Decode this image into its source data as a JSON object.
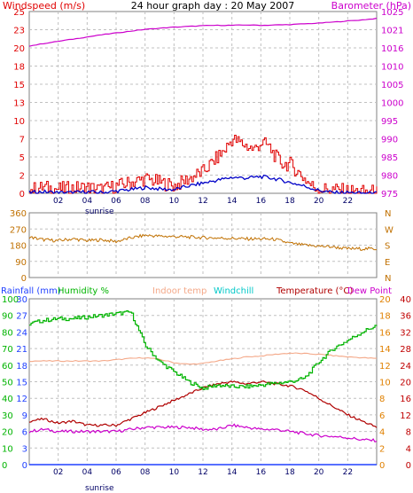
{
  "colors": {
    "wind_avg": "#0000c8",
    "wind_gust": "#e00000",
    "barometer": "#cc00cc",
    "wind_dir": "#c07000",
    "rain": "#2040ff",
    "humidity": "#00b400",
    "indoor_temp": "#f4a888",
    "windchill": "#00c8c8",
    "temperature": "#b00000",
    "dew_point": "#cc00cc",
    "right_axis_orange": "#e08000",
    "right_axis_red": "#c00000",
    "grid": "#c0c0c0",
    "frame": "#808080",
    "axis_text": "#000066"
  },
  "chart_data": [
    {
      "type": "line",
      "id": "wind-baro",
      "title": "24 hour graph day : 20 May 2007",
      "left_label": "Windspeed (m/s)",
      "right_label": "Barometer (hPa)",
      "left_ticks": [
        "0",
        "2",
        "5",
        "7",
        "10",
        "13",
        "15",
        "18",
        "20",
        "23",
        "25"
      ],
      "right_ticks": [
        "975",
        "980",
        "985",
        "990",
        "995",
        "1000",
        "1005",
        "1010",
        "1016",
        "1021",
        "1025"
      ],
      "x_ticks": [
        "02",
        "04",
        "06",
        "08",
        "10",
        "12",
        "14",
        "16",
        "18",
        "20",
        "22"
      ],
      "x_note": "sunrise",
      "ylim_left": [
        0,
        25
      ],
      "ylim_right": [
        975,
        1025
      ],
      "xlim": [
        0,
        24
      ],
      "series": [
        {
          "name": "Barometer",
          "axis": "right",
          "x": [
            0,
            1,
            2,
            3,
            4,
            5,
            6,
            7,
            8,
            9,
            10,
            11,
            12,
            13,
            14,
            15,
            16,
            17,
            18,
            19,
            20,
            21,
            22,
            23,
            24
          ],
          "values": [
            1015.5,
            1016.2,
            1016.8,
            1017.4,
            1018,
            1018.6,
            1019.1,
            1019.6,
            1020.1,
            1020.4,
            1020.7,
            1020.9,
            1021.1,
            1021.2,
            1021.2,
            1021.3,
            1021.2,
            1021.3,
            1021.4,
            1021.6,
            1021.8,
            1022.1,
            1022.4,
            1022.7,
            1023.1
          ]
        },
        {
          "name": "Wind gust",
          "axis": "left",
          "x": [
            0,
            1,
            2,
            3,
            4,
            5,
            6,
            7,
            8,
            9,
            10,
            11,
            12,
            12.5,
            13,
            13.5,
            14,
            14.5,
            15,
            15.5,
            16,
            16.5,
            17,
            17.5,
            18,
            18.5,
            19,
            19.5,
            20,
            21,
            22,
            23,
            24
          ],
          "values": [
            0.5,
            0.8,
            0.6,
            0.7,
            0.8,
            0.5,
            1,
            1.5,
            2,
            1.5,
            1,
            2,
            3,
            4,
            5,
            6,
            7.5,
            7,
            6.5,
            6,
            7,
            6.5,
            5,
            4,
            4,
            3,
            2,
            1,
            0.6,
            0.5,
            0.3,
            0.2,
            0.2
          ]
        },
        {
          "name": "Wind average",
          "axis": "left",
          "x": [
            0,
            1,
            2,
            3,
            4,
            5,
            6,
            7,
            8,
            9,
            10,
            11,
            12,
            13,
            14,
            15,
            16,
            17,
            18,
            19,
            20,
            21,
            22,
            23,
            24
          ],
          "values": [
            0.1,
            0.2,
            0.1,
            0.1,
            0.2,
            0.1,
            0.3,
            0.5,
            0.8,
            0.6,
            0.5,
            1,
            1.4,
            1.8,
            2.2,
            2.1,
            2.3,
            2,
            1.5,
            1,
            0.4,
            0.1,
            0.1,
            0,
            0
          ]
        }
      ]
    },
    {
      "type": "line",
      "id": "wind-direction",
      "left_ticks": [
        "0",
        "90",
        "180",
        "270",
        "360"
      ],
      "right_ticks": [
        "N",
        "E",
        "S",
        "W",
        "N"
      ],
      "ylim": [
        0,
        360
      ],
      "xlim": [
        0,
        24
      ],
      "series": [
        {
          "name": "Wind direction",
          "x": [
            0,
            1,
            2,
            3,
            4,
            5,
            6,
            7,
            8,
            9,
            10,
            11,
            12,
            13,
            14,
            15,
            16,
            17,
            18,
            19,
            20,
            21,
            22,
            23,
            24
          ],
          "values": [
            225,
            210,
            205,
            215,
            205,
            210,
            200,
            220,
            235,
            230,
            228,
            225,
            222,
            220,
            218,
            215,
            215,
            212,
            190,
            180,
            175,
            170,
            160,
            160,
            160
          ]
        }
      ]
    },
    {
      "type": "line",
      "id": "temp-hum-rain",
      "labels": {
        "rain": "Rainfall (mm)",
        "humidity": "Humidity %",
        "indoor": "Indoor temp",
        "windchill": "Windchill",
        "temperature": "Temperature (°C)",
        "dewpoint": "Dew Point"
      },
      "x_ticks": [
        "02",
        "04",
        "06",
        "08",
        "10",
        "12",
        "14",
        "16",
        "18",
        "20",
        "22"
      ],
      "x_note": "sunrise",
      "humidity_ticks": [
        "0",
        "10",
        "20",
        "30",
        "40",
        "50",
        "60",
        "70",
        "80",
        "90",
        "100"
      ],
      "rain_ticks": [
        "0",
        "3",
        "6",
        "9",
        "12",
        "15",
        "18",
        "21",
        "24",
        "27",
        "30"
      ],
      "temp_ticks_outer": [
        "0",
        "4",
        "8",
        "12",
        "16",
        "20",
        "24",
        "28",
        "32",
        "36",
        "40"
      ],
      "temp_ticks_inner": [
        "0",
        "2",
        "4",
        "6",
        "8",
        "10",
        "12",
        "14",
        "16",
        "18",
        "20"
      ],
      "xlim": [
        0,
        24
      ],
      "ylim_humidity": [
        0,
        100
      ],
      "ylim_temperature": [
        0,
        40
      ],
      "series": [
        {
          "name": "Humidity",
          "axis": "humidity",
          "x": [
            0,
            1,
            2,
            3,
            4,
            5,
            6,
            7,
            8,
            9,
            10,
            11,
            12,
            13,
            14,
            15,
            16,
            17,
            18,
            19,
            20,
            21,
            22,
            23,
            24
          ],
          "values": [
            85,
            87,
            88,
            88,
            89,
            90,
            91,
            92,
            72,
            62,
            56,
            50,
            46,
            48,
            47,
            47,
            48,
            49,
            50,
            52,
            62,
            70,
            75,
            80,
            84
          ]
        },
        {
          "name": "Indoor temp",
          "axis": "temperature",
          "x": [
            0,
            1,
            2,
            3,
            4,
            5,
            6,
            7,
            8,
            9,
            10,
            11,
            12,
            13,
            14,
            15,
            16,
            17,
            18,
            19,
            20,
            21,
            22,
            23,
            24
          ],
          "values": [
            25,
            25,
            25,
            25,
            25,
            25,
            25.3,
            25.6,
            25.8,
            25.4,
            24.6,
            24.2,
            24.4,
            25,
            25.5,
            26,
            26.2,
            26.6,
            26.9,
            26.8,
            26.6,
            26.3,
            26,
            25.8,
            25.6
          ]
        },
        {
          "name": "Temperature",
          "axis": "temperature",
          "x": [
            0,
            1,
            2,
            3,
            4,
            5,
            6,
            7,
            8,
            9,
            10,
            11,
            12,
            13,
            14,
            15,
            16,
            17,
            18,
            19,
            20,
            21,
            22,
            23,
            24
          ],
          "values": [
            10.5,
            11,
            10,
            10.5,
            9.5,
            9.5,
            9.5,
            11,
            12.5,
            14,
            15.5,
            17,
            18.5,
            19.5,
            20,
            19.5,
            20,
            19.5,
            19,
            18,
            16,
            14,
            12,
            10.5,
            9
          ]
        },
        {
          "name": "Dew Point",
          "axis": "temperature",
          "x": [
            0,
            1,
            2,
            3,
            4,
            5,
            6,
            7,
            8,
            9,
            10,
            11,
            12,
            13,
            14,
            15,
            16,
            17,
            18,
            19,
            20,
            21,
            22,
            23,
            24
          ],
          "values": [
            8,
            8.5,
            8,
            8,
            8,
            8,
            8,
            8.5,
            9,
            9,
            9,
            9,
            8.5,
            8.5,
            9.5,
            9,
            8.5,
            8.5,
            8,
            7.5,
            7,
            6.8,
            6.5,
            6,
            5.8
          ]
        },
        {
          "name": "Rainfall",
          "axis": "humidity",
          "x": [
            0,
            24
          ],
          "values": [
            0,
            0
          ]
        }
      ]
    }
  ]
}
